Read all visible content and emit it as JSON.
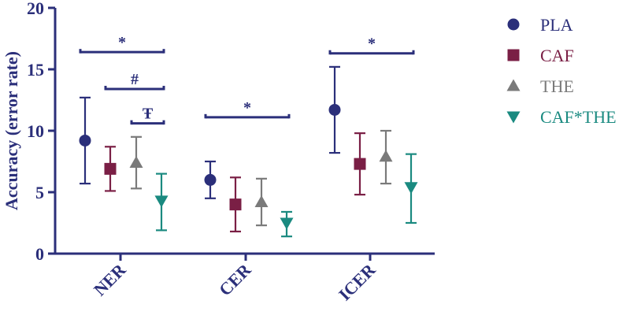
{
  "chart_data": {
    "type": "scatter",
    "ylabel": "Accuracy (error rate)",
    "ylim": [
      0,
      20
    ],
    "yticks": [
      "0",
      "5",
      "10",
      "15",
      "20"
    ],
    "categories": [
      "NER",
      "CER",
      "ICER"
    ],
    "series": [
      {
        "name": "PLA",
        "color": "#2b2f7a",
        "marker": "circle",
        "values": [
          9.2,
          6.0,
          11.7
        ],
        "err_low": [
          5.7,
          4.5,
          8.2
        ],
        "err_high": [
          12.7,
          7.5,
          15.2
        ]
      },
      {
        "name": "CAF",
        "color": "#7a1f45",
        "marker": "square",
        "values": [
          6.9,
          4.0,
          7.3
        ],
        "err_low": [
          5.1,
          1.8,
          4.8
        ],
        "err_high": [
          8.7,
          6.2,
          9.8
        ]
      },
      {
        "name": "THE",
        "color": "#7a7a7a",
        "marker": "triangle-up",
        "values": [
          7.4,
          4.2,
          7.9
        ],
        "err_low": [
          5.3,
          2.3,
          5.7
        ],
        "err_high": [
          9.5,
          6.1,
          10.0
        ]
      },
      {
        "name": "CAF*THE",
        "color": "#1a8a80",
        "marker": "triangle-down",
        "values": [
          4.3,
          2.5,
          5.4
        ],
        "err_low": [
          1.9,
          1.4,
          2.5
        ],
        "err_high": [
          6.5,
          3.4,
          8.1
        ]
      }
    ],
    "annotations": [
      {
        "label": "*",
        "category": "NER",
        "from": "PLA",
        "to": "CAF*THE",
        "y": 16.4
      },
      {
        "label": "#",
        "category": "NER",
        "from": "CAF",
        "to": "CAF*THE",
        "y": 13.4
      },
      {
        "label": "Ŧ",
        "category": "NER",
        "from": "THE",
        "to": "CAF*THE",
        "y": 10.6
      },
      {
        "label": "*",
        "category": "CER",
        "from": "PLA",
        "to": "CAF*THE",
        "y": 11.1
      },
      {
        "label": "*",
        "category": "ICER",
        "from": "PLA",
        "to": "CAF*THE",
        "y": 16.3
      }
    ],
    "legend_position": "right",
    "grid": false
  }
}
